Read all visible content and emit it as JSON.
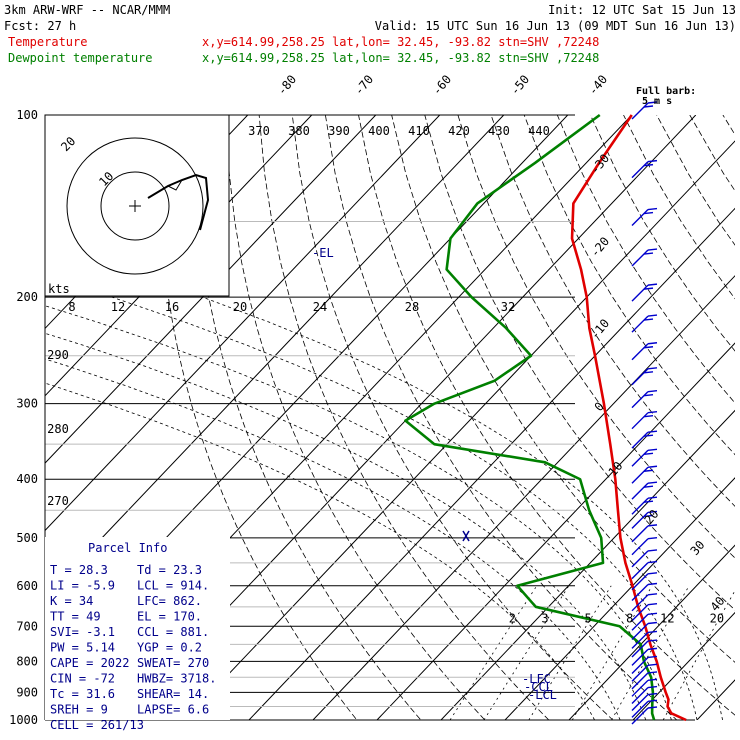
{
  "header": {
    "model": "3km ARW-WRF -- NCAR/MMM",
    "init": "Init: 12 UTC Sat 15 Jun 13",
    "fcst": "Fcst:    27 h",
    "valid": "Valid: 15 UTC Sun 16 Jun 13 (09 MDT Sun 16 Jun 13)",
    "temp_label": "Temperature",
    "temp_info": "x,y=614.99,258.25   lat,lon= 32.45, -93.82  stn=SHV ,72248",
    "dew_label": "Dewpoint temperature",
    "dew_info": "x,y=614.99,258.25   lat,lon= 32.45, -93.82  stn=SHV ,72248"
  },
  "colors": {
    "temperature": "#e00000",
    "dewpoint": "#008000",
    "parcel_text": "#00008b",
    "wind": "#0000cd"
  },
  "full_barb": "Full barb:",
  "full_barb_units": "5 m s",
  "chart_data": {
    "type": "line",
    "pressure_levels": [
      "100",
      "200",
      "300",
      "400",
      "500",
      "600",
      "700",
      "800",
      "900",
      "1000"
    ],
    "isotherm_labels": [
      "-80",
      "-70",
      "-60",
      "-50",
      "-40",
      "-30",
      "-20",
      "-10",
      "0",
      "10",
      "20",
      "30",
      "40"
    ],
    "theta_labels": [
      "370",
      "380",
      "390",
      "400",
      "410",
      "420",
      "430",
      "440"
    ],
    "mixing_ratio_labels": [
      "2",
      "3",
      "5",
      "8",
      "12",
      "20"
    ],
    "lower_theta_labels": [
      "290",
      "280",
      "270"
    ],
    "hodograph": {
      "units": "kts",
      "rings": [
        "10",
        "20"
      ],
      "speed_ticks": [
        "8",
        "12",
        "16",
        "20",
        "24",
        "28",
        "32"
      ]
    },
    "el_label": "-EL",
    "lfc_label": "-LFC",
    "lcl_label": "-LCL",
    "ccl_label": "-CCL",
    "series": [
      {
        "name": "Temperature",
        "points": [
          [
            1000,
            28.3
          ],
          [
            975,
            25
          ],
          [
            950,
            23.4
          ],
          [
            925,
            22.5
          ],
          [
            900,
            21
          ],
          [
            850,
            18
          ],
          [
            800,
            15
          ],
          [
            750,
            11.5
          ],
          [
            700,
            8
          ],
          [
            650,
            4
          ],
          [
            600,
            0
          ],
          [
            550,
            -4.5
          ],
          [
            500,
            -9
          ],
          [
            450,
            -13.5
          ],
          [
            400,
            -18.5
          ],
          [
            350,
            -24.5
          ],
          [
            300,
            -31.5
          ],
          [
            250,
            -40
          ],
          [
            225,
            -45
          ],
          [
            200,
            -50
          ],
          [
            180,
            -55
          ],
          [
            160,
            -61
          ],
          [
            140,
            -66
          ],
          [
            120,
            -68
          ],
          [
            100,
            -70
          ]
        ]
      },
      {
        "name": "Dewpoint temperature",
        "points": [
          [
            1000,
            23.3
          ],
          [
            975,
            22
          ],
          [
            950,
            21
          ],
          [
            925,
            20
          ],
          [
            900,
            19
          ],
          [
            850,
            16.5
          ],
          [
            800,
            13
          ],
          [
            750,
            10
          ],
          [
            700,
            4
          ],
          [
            650,
            -12
          ],
          [
            600,
            -18
          ],
          [
            550,
            -8
          ],
          [
            500,
            -12
          ],
          [
            450,
            -18
          ],
          [
            400,
            -24
          ],
          [
            375,
            -32
          ],
          [
            350,
            -52
          ],
          [
            320,
            -60
          ],
          [
            300,
            -58
          ],
          [
            275,
            -52
          ],
          [
            250,
            -50
          ],
          [
            225,
            -58
          ],
          [
            200,
            -68
          ],
          [
            180,
            -76
          ],
          [
            160,
            -80
          ],
          [
            140,
            -81
          ],
          [
            120,
            -78
          ],
          [
            100,
            -75
          ]
        ]
      }
    ]
  },
  "parcel_info": {
    "title": "Parcel Info",
    "rows": [
      [
        "T  =   28.3",
        "Td =   23.3"
      ],
      [
        "LI =   -5.9",
        "LCL =  914."
      ],
      [
        "K  =     34",
        "LFC=  862."
      ],
      [
        "TT =     49",
        "EL =  170."
      ],
      [
        "SVI=   -3.1",
        "CCL =  881."
      ],
      [
        "PW =   5.14",
        "YGP =   0.2"
      ],
      [
        "CAPE =  2022",
        "SWEAT=  270"
      ],
      [
        "CIN =   -72",
        "HWBZ= 3718."
      ],
      [
        "Tc =   31.6",
        "SHEAR=  14."
      ],
      [
        "SREH =     9",
        "LAPSE=  6.6"
      ],
      [
        "CELL = 261/13",
        ""
      ]
    ]
  }
}
